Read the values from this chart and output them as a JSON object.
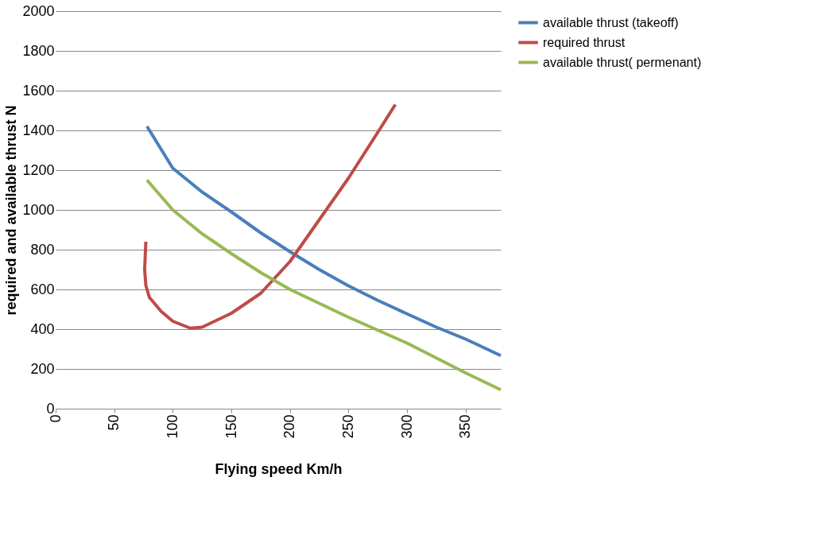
{
  "chart_data": {
    "type": "line",
    "xlabel": "Flying speed Km/h",
    "ylabel": "required and available thrust  N",
    "xlim": [
      0,
      380
    ],
    "xticks": [
      0,
      50,
      100,
      150,
      200,
      250,
      300,
      350
    ],
    "ylim": [
      0,
      2000
    ],
    "yticks": [
      0,
      200,
      400,
      600,
      800,
      1000,
      1200,
      1400,
      1600,
      1800,
      2000
    ],
    "grid": "y",
    "legend": "right",
    "line_style": "solid",
    "marker": "none",
    "series": [
      {
        "name": "available thrust (takeoff)",
        "color": "#4a7ebb",
        "x": [
          78,
          100,
          125,
          150,
          175,
          200,
          225,
          250,
          275,
          300,
          325,
          350,
          380
        ],
        "values": [
          1420,
          1210,
          1090,
          990,
          885,
          790,
          700,
          618,
          545,
          477,
          410,
          350,
          267
        ]
      },
      {
        "name": "required thrust",
        "color": "#be4b48",
        "x": [
          77,
          76,
          77,
          80,
          90,
          100,
          115,
          125,
          150,
          175,
          200,
          225,
          250,
          275,
          290
        ],
        "values": [
          840,
          700,
          620,
          560,
          490,
          440,
          405,
          410,
          480,
          580,
          740,
          950,
          1160,
          1390,
          1530
        ]
      },
      {
        "name": "available thrust( permenant)",
        "color": "#98b954",
        "x": [
          78,
          100,
          125,
          150,
          175,
          200,
          225,
          250,
          275,
          300,
          325,
          350,
          380
        ],
        "values": [
          1150,
          1000,
          880,
          780,
          685,
          600,
          530,
          460,
          395,
          330,
          255,
          180,
          95
        ]
      }
    ]
  }
}
